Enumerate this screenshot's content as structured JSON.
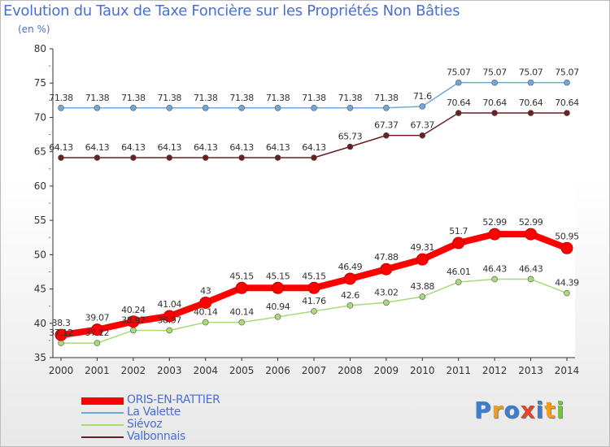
{
  "header": {
    "title": "Evolution du Taux de Taxe Foncière sur les Propriétés Non Bâties",
    "subtitle": "(en %)"
  },
  "chart_data": {
    "type": "line",
    "title": "Evolution du Taux de Taxe Foncière sur les Propriétés Non Bâties",
    "ylabel": "(en %)",
    "xlabel": "",
    "ylim": [
      35,
      80
    ],
    "yticks": [
      35,
      40,
      45,
      50,
      55,
      60,
      65,
      70,
      75,
      80
    ],
    "x": [
      "2000",
      "2001",
      "2002",
      "2003",
      "2004",
      "2005",
      "2006",
      "2007",
      "2008",
      "2009",
      "2010",
      "2011",
      "2012",
      "2013",
      "2014"
    ],
    "grid": false,
    "legend_position": "bottom-left",
    "series": [
      {
        "name": "ORIS-EN-RATTIER",
        "color": "#ff0000",
        "values": [
          38.3,
          39.07,
          40.24,
          41.04,
          43,
          45.15,
          45.15,
          45.15,
          46.49,
          47.88,
          49.31,
          51.7,
          52.99,
          52.99,
          50.95
        ],
        "labels": [
          "38.3",
          "39.07",
          "40.24",
          "41.04",
          "43",
          "45.15",
          "45.15",
          "45.15",
          "46.49",
          "47.88",
          "49.31",
          "51.7",
          "52.99",
          "52.99",
          "50.95"
        ]
      },
      {
        "name": "La Valette",
        "color": "#6fa8dc",
        "values": [
          71.38,
          71.38,
          71.38,
          71.38,
          71.38,
          71.38,
          71.38,
          71.38,
          71.38,
          71.38,
          71.6,
          75.07,
          75.07,
          75.07,
          75.07
        ],
        "labels": [
          "71.38",
          "71.38",
          "71.38",
          "71.38",
          "71.38",
          "71.38",
          "71.38",
          "71.38",
          "71.38",
          "71.38",
          "71.6",
          "75.07",
          "75.07",
          "75.07",
          "75.07"
        ]
      },
      {
        "name": "Siévoz",
        "color": "#a8d97a",
        "values": [
          37.12,
          37.12,
          38.97,
          38.97,
          40.14,
          40.14,
          40.94,
          41.76,
          42.6,
          43.02,
          43.88,
          46.01,
          46.43,
          46.43,
          44.39
        ],
        "labels": [
          "37.12",
          "37.12",
          "38.97",
          "38.97",
          "40.14",
          "40.14",
          "40.94",
          "41.76",
          "42.6",
          "43.02",
          "43.88",
          "46.01",
          "46.43",
          "46.43",
          "44.39"
        ]
      },
      {
        "name": "Valbonnais",
        "color": "#6b1f22",
        "values": [
          64.13,
          64.13,
          64.13,
          64.13,
          64.13,
          64.13,
          64.13,
          64.13,
          65.73,
          67.37,
          67.37,
          70.64,
          70.64,
          70.64,
          70.64
        ],
        "labels": [
          "64.13",
          "64.13",
          "64.13",
          "64.13",
          "64.13",
          "64.13",
          "64.13",
          "64.13",
          "65.73",
          "67.37",
          "67.37",
          "70.64",
          "70.64",
          "70.64",
          "70.64"
        ]
      }
    ]
  },
  "legend": {
    "items": [
      {
        "label": "ORIS-EN-RATTIER",
        "color": "#ff0000"
      },
      {
        "label": "La Valette",
        "color": "#6fa8dc"
      },
      {
        "label": "Siévoz",
        "color": "#a8d97a"
      },
      {
        "label": "Valbonnais",
        "color": "#6b1f22"
      }
    ]
  },
  "logo": {
    "letters": [
      "P",
      "r",
      "o",
      "x",
      "i",
      "t",
      "i"
    ],
    "colors": [
      "#3a7fd0",
      "#f59b1c",
      "#3a7fd0",
      "#e8402a",
      "#3a7fd0",
      "#f59b1c",
      "#7cc242"
    ]
  }
}
